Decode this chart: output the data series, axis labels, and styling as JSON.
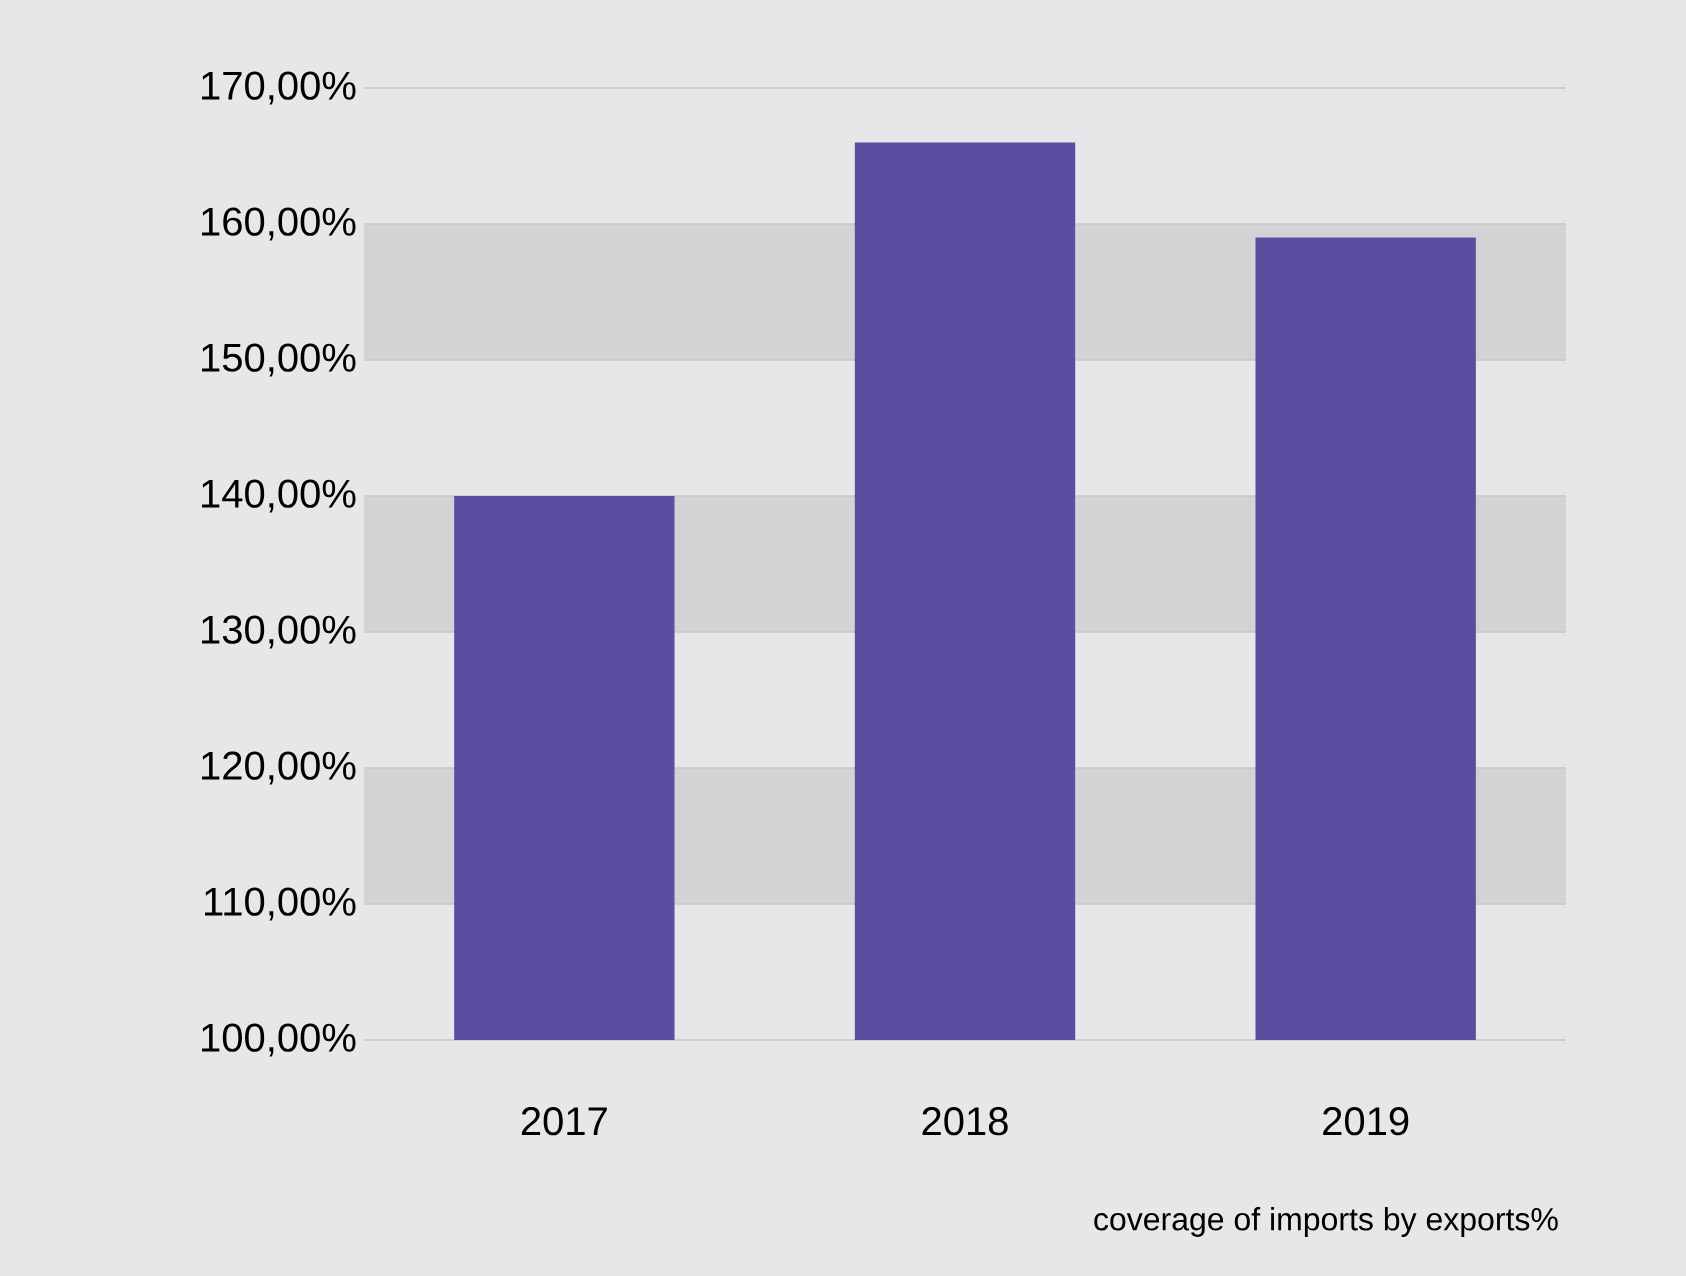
{
  "chart_data": {
    "type": "bar",
    "categories": [
      "2017",
      "2018",
      "2019"
    ],
    "values": [
      140,
      166,
      159
    ],
    "color": "#5b4ea0",
    "xlabel": "coverage of imports by exports%",
    "ylim": [
      100,
      170
    ],
    "yticks": [
      {
        "value": 100,
        "label": "100,00%"
      },
      {
        "value": 110,
        "label": "110,00%"
      },
      {
        "value": 120,
        "label": "120,00%"
      },
      {
        "value": 130,
        "label": "130,00%"
      },
      {
        "value": 140,
        "label": "140,00%"
      },
      {
        "value": 150,
        "label": "150,00%"
      },
      {
        "value": 160,
        "label": "160,00%"
      },
      {
        "value": 170,
        "label": "170,00%"
      }
    ],
    "grid": "y",
    "bands": [
      {
        "axis": "y",
        "from": 110,
        "to": 120,
        "color": "#d2d3d5"
      },
      {
        "axis": "y",
        "from": 130,
        "to": 140,
        "color": "#d2d3d5"
      },
      {
        "axis": "y",
        "from": 150,
        "to": 160,
        "color": "#d2d3d5"
      }
    ]
  }
}
